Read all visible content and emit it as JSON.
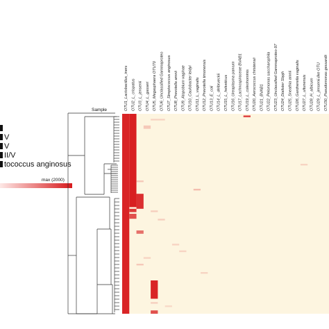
{
  "chart_data": {
    "type": "heatmap",
    "title": "",
    "xlabel": "",
    "ylabel": "",
    "dendrogram_label": "Sample",
    "color_scale": {
      "min_color": "#fdf5e0",
      "max_color": "#d7191c",
      "max_label": "max (2000)",
      "max_value": 2000
    },
    "legend_entries": [
      "",
      "V",
      "V",
      "II/V",
      "tococcus anginosus"
    ],
    "columns": [
      "OTU1_Lactobacillus_iners",
      "OTU2_L_crispatus",
      "OTU3_L_jensenii",
      "OTU4_L_gasseri",
      "OTU5_Megasphaera OTU70",
      "OTU6_Unclassified Gammaproteo",
      "OTU7_Streptococcus anginosus",
      "OTU8_Prevotella amnii",
      "OTU9_Atopobium vaginae",
      "OTU10_Caulobacter leidyi",
      "OTU11_L_vaginalis",
      "OTU12_Prevotella timonensis",
      "OTU13_E_coli",
      "OTU14_L_delbrueckii",
      "OTU15_L_helveticus",
      "OTU16_Ureaplasma parvum",
      "OTU17_Lachnospiraceae BVAB1",
      "OTU19_L_coleohominis",
      "OTU20_Aerococcus christensii",
      "OTU21_BVAB1",
      "OTU22_Pelomonas saccharophila",
      "OTU23_Unclassified Gammaproteo-97",
      "OTU24_Dialister Sbpjh",
      "OTU25_Sneathia amnii",
      "OTU26_Gardnerella vaginalis",
      "OTU27_L_ultunensis",
      "OTU28_H_albicum",
      "OTU29_L_jensenii-like OTU",
      "OTU30_Pseudomonas gessardii"
    ],
    "row_count": 120,
    "cells": [
      {
        "col": 0,
        "rows": [
          0,
          119
        ],
        "value": 1900
      },
      {
        "col": 1,
        "rows": [
          0,
          55
        ],
        "value": 1950
      },
      {
        "col": 1,
        "rows": [
          57,
          58
        ],
        "value": 1700
      },
      {
        "col": 1,
        "rows": [
          60,
          62
        ],
        "value": 1500
      },
      {
        "col": 2,
        "rows": [
          48,
          56
        ],
        "value": 1800
      },
      {
        "col": 2,
        "rows": [
          70,
          71
        ],
        "value": 1200
      },
      {
        "col": 4,
        "rows": [
          100,
          110
        ],
        "value": 1900
      },
      {
        "col": 4,
        "rows": [
          118,
          119
        ],
        "value": 1500
      },
      {
        "col": 17,
        "rows": [
          1,
          1
        ],
        "value": 1700
      },
      {
        "col": 4,
        "rows": [
          3,
          3
        ],
        "value": 300
      },
      {
        "col": 5,
        "rows": [
          3,
          3
        ],
        "value": 300
      },
      {
        "col": 3,
        "rows": [
          7,
          8
        ],
        "value": 400
      },
      {
        "col": 2,
        "rows": [
          40,
          40
        ],
        "value": 400
      },
      {
        "col": 10,
        "rows": [
          45,
          45
        ],
        "value": 500
      },
      {
        "col": 4,
        "rows": [
          58,
          58
        ],
        "value": 350
      },
      {
        "col": 5,
        "rows": [
          63,
          63
        ],
        "value": 350
      },
      {
        "col": 7,
        "rows": [
          78,
          78
        ],
        "value": 300
      },
      {
        "col": 8,
        "rows": [
          82,
          82
        ],
        "value": 300
      },
      {
        "col": 3,
        "rows": [
          86,
          86
        ],
        "value": 300
      },
      {
        "col": 2,
        "rows": [
          90,
          90
        ],
        "value": 400
      },
      {
        "col": 11,
        "rows": [
          95,
          95
        ],
        "value": 300
      },
      {
        "col": 25,
        "rows": [
          30,
          30
        ],
        "value": 300
      },
      {
        "col": 4,
        "rows": [
          113,
          113
        ],
        "value": 350
      },
      {
        "col": 6,
        "rows": [
          115,
          115
        ],
        "value": 250
      }
    ]
  }
}
